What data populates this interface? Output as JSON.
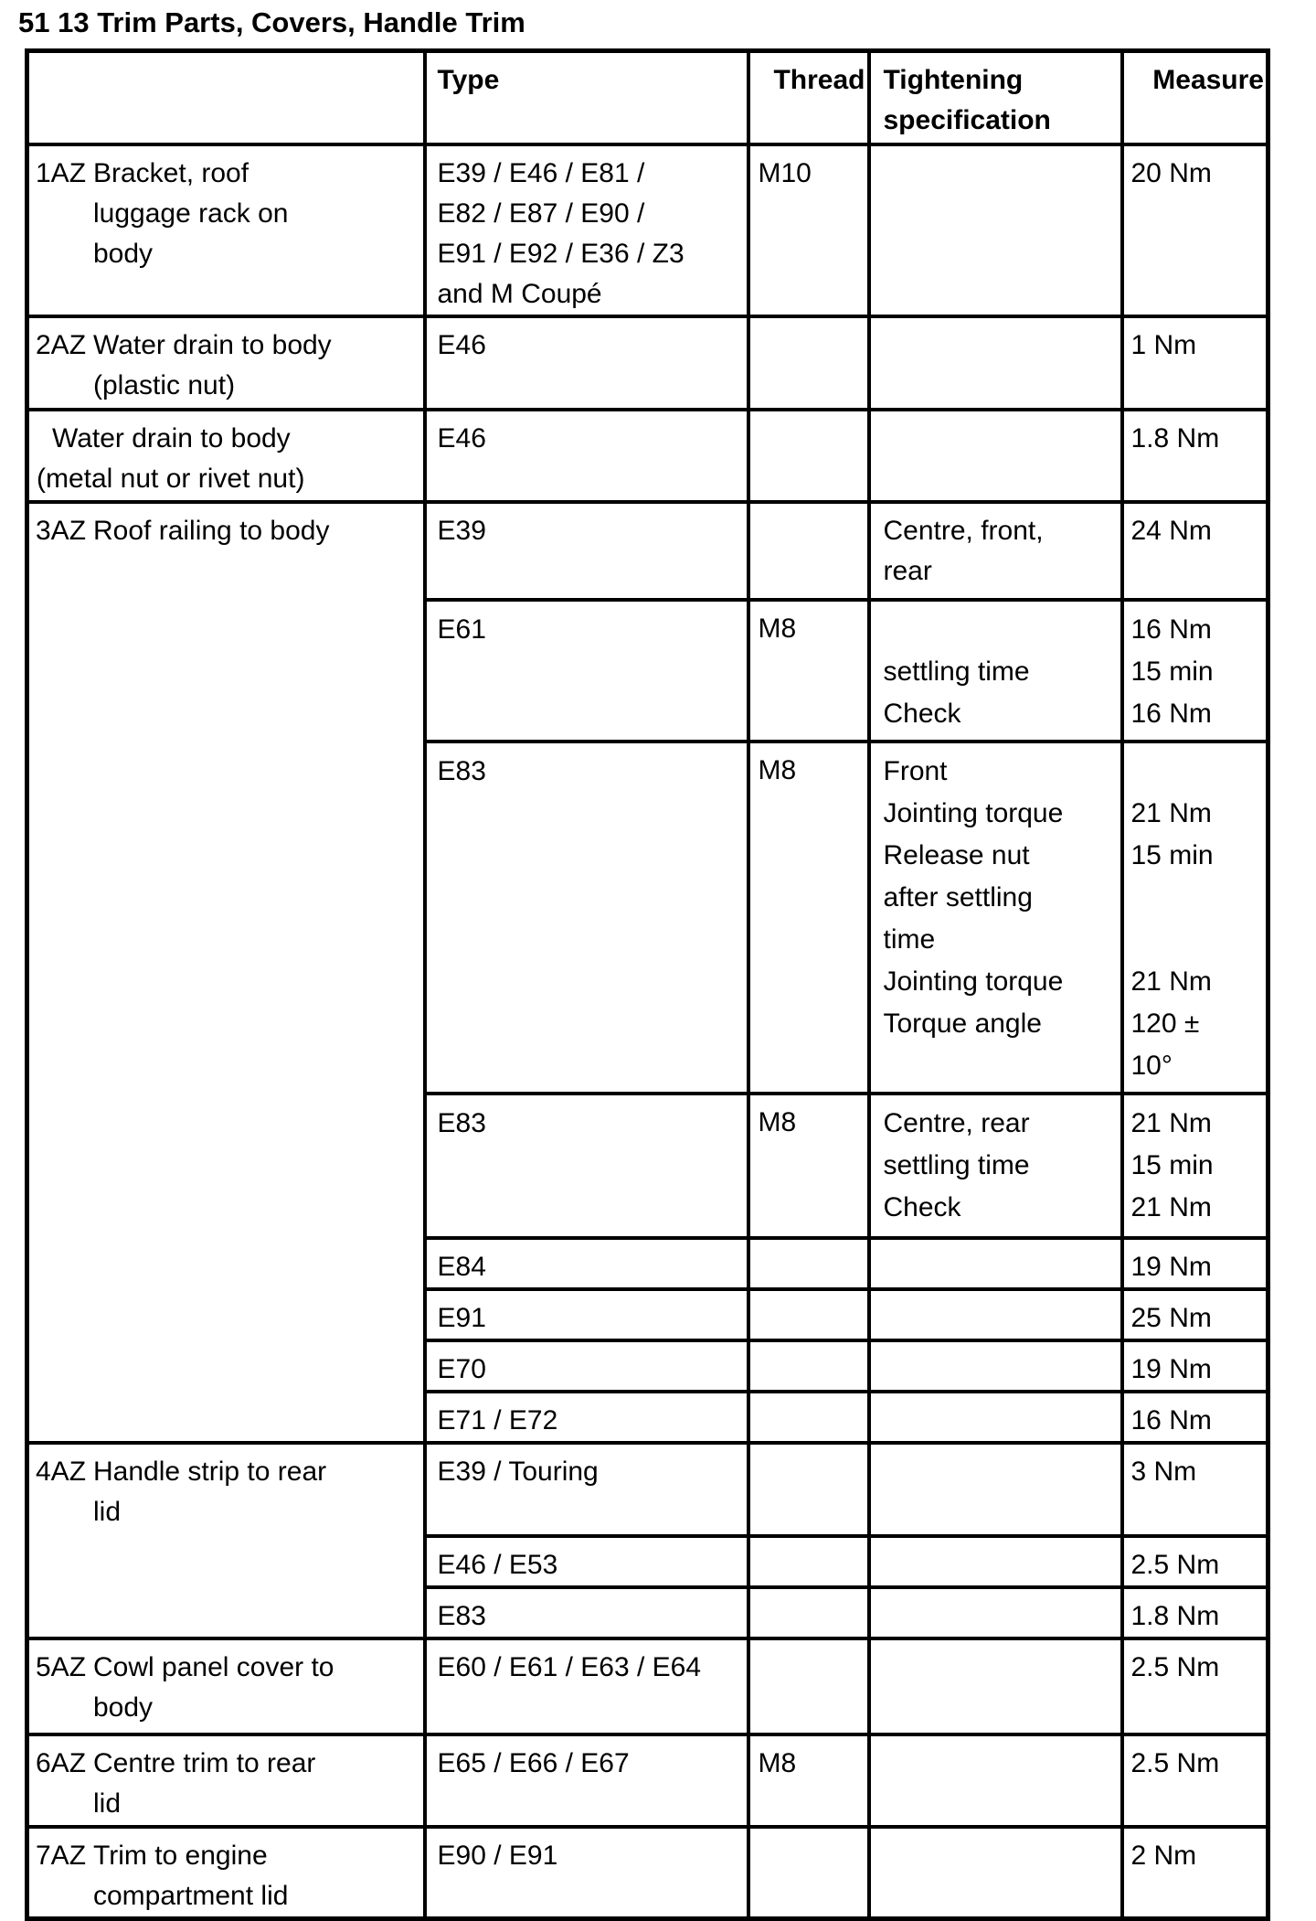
{
  "page": {
    "title": "51 13 Trim Parts, Covers, Handle Trim"
  },
  "table": {
    "headers": {
      "type": "Type",
      "thread": "Thread",
      "spec_lines": [
        "Tightening",
        "specification"
      ],
      "measure": "Measure"
    },
    "groups": [
      {
        "label": "1AZ",
        "desc_lines": [
          "Bracket, roof",
          "luggage rack on",
          "body"
        ],
        "rows": [
          {
            "type_lines": [
              "E39 / E46 / E81 /",
              "E82 / E87 / E90 /",
              "E91 / E92 / E36 / Z3",
              "and M Coupé"
            ],
            "thread": "M10",
            "spec_lines": [],
            "measure_lines": [
              "20 Nm"
            ]
          }
        ]
      },
      {
        "label": "2AZ",
        "desc_lines": [
          "Water drain to body",
          "(plastic nut)"
        ],
        "rows": [
          {
            "type_lines": [
              "E46"
            ],
            "thread": "",
            "spec_lines": [],
            "measure_lines": [
              "1 Nm"
            ]
          }
        ]
      },
      {
        "label": "",
        "desc_lines": [
          "Water drain to body",
          "(metal nut or rivet nut)"
        ],
        "rows": [
          {
            "type_lines": [
              "E46"
            ],
            "thread": "",
            "spec_lines": [],
            "measure_lines": [
              "1.8 Nm"
            ]
          }
        ]
      },
      {
        "label": "3AZ",
        "desc_lines": [
          "Roof railing to body"
        ],
        "rows": [
          {
            "type_lines": [
              "E39"
            ],
            "thread": "",
            "spec_lines": [
              "Centre, front,",
              "rear"
            ],
            "measure_lines": [
              "24 Nm"
            ]
          },
          {
            "type_lines": [
              "E61"
            ],
            "thread": "M8",
            "spec_lines": [
              "",
              "settling time",
              "Check"
            ],
            "measure_lines": [
              "16 Nm",
              "15 min",
              "16 Nm"
            ]
          },
          {
            "type_lines": [
              "E83"
            ],
            "thread": "M8",
            "spec_lines": [
              "Front",
              "Jointing torque",
              "Release nut",
              "after settling",
              "time",
              "Jointing torque",
              "Torque angle"
            ],
            "measure_lines": [
              "",
              "21 Nm",
              "15 min",
              "",
              "",
              "21 Nm",
              "120 ±",
              "10°"
            ]
          },
          {
            "type_lines": [
              "E83"
            ],
            "thread": "M8",
            "spec_lines": [
              "Centre, rear",
              "settling time",
              "Check"
            ],
            "measure_lines": [
              "21 Nm",
              "15 min",
              "21 Nm"
            ]
          },
          {
            "type_lines": [
              "E84"
            ],
            "thread": "",
            "spec_lines": [],
            "measure_lines": [
              "19 Nm"
            ]
          },
          {
            "type_lines": [
              "E91"
            ],
            "thread": "",
            "spec_lines": [],
            "measure_lines": [
              "25 Nm"
            ]
          },
          {
            "type_lines": [
              "E70"
            ],
            "thread": "",
            "spec_lines": [],
            "measure_lines": [
              "19 Nm"
            ]
          },
          {
            "type_lines": [
              "E71 / E72"
            ],
            "thread": "",
            "spec_lines": [],
            "measure_lines": [
              "16 Nm"
            ]
          }
        ]
      },
      {
        "label": "4AZ",
        "desc_lines": [
          "Handle strip to rear",
          "lid"
        ],
        "rows": [
          {
            "type_lines": [
              "E39 / Touring"
            ],
            "thread": "",
            "spec_lines": [],
            "measure_lines": [
              "3 Nm"
            ]
          },
          {
            "type_lines": [
              "E46 / E53"
            ],
            "thread": "",
            "spec_lines": [],
            "measure_lines": [
              "2.5 Nm"
            ]
          },
          {
            "type_lines": [
              "E83"
            ],
            "thread": "",
            "spec_lines": [],
            "measure_lines": [
              "1.8 Nm"
            ]
          }
        ]
      },
      {
        "label": "5AZ",
        "desc_lines": [
          "Cowl panel cover to",
          "body"
        ],
        "rows": [
          {
            "type_lines": [
              "E60 / E61 / E63 / E64"
            ],
            "thread": "",
            "spec_lines": [],
            "measure_lines": [
              "2.5 Nm"
            ]
          }
        ]
      },
      {
        "label": "6AZ",
        "desc_lines": [
          "Centre trim to rear",
          "lid"
        ],
        "rows": [
          {
            "type_lines": [
              "E65 / E66 / E67"
            ],
            "thread": "M8",
            "spec_lines": [],
            "measure_lines": [
              "2.5 Nm"
            ]
          }
        ]
      },
      {
        "label": "7AZ",
        "desc_lines": [
          "Trim to engine",
          "compartment lid"
        ],
        "rows": [
          {
            "type_lines": [
              "E90 / E91"
            ],
            "thread": "",
            "spec_lines": [],
            "measure_lines": [
              "2 Nm"
            ]
          }
        ]
      }
    ]
  }
}
